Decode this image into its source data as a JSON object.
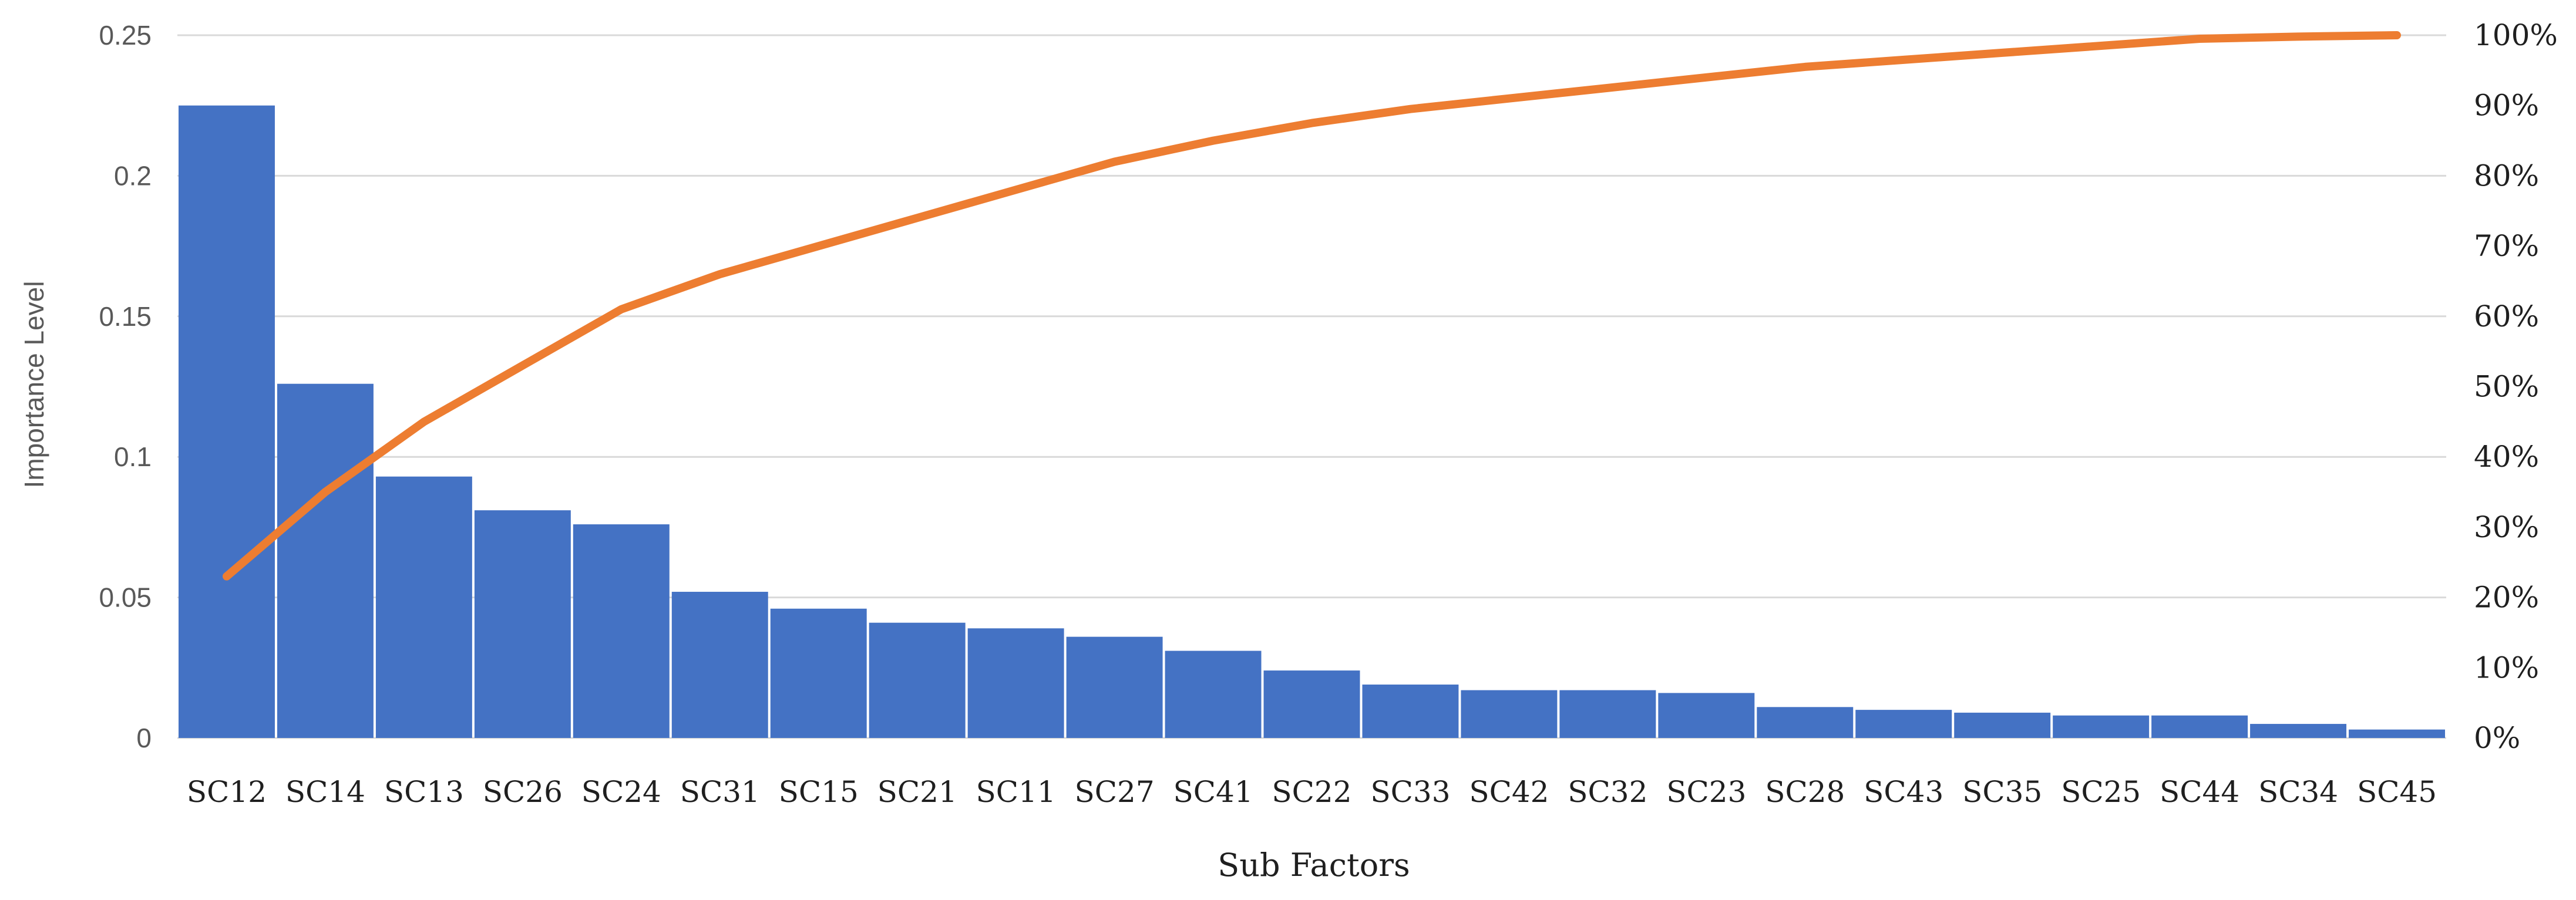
{
  "chart_data": {
    "type": "bar",
    "xlabel": "Sub Factors",
    "ylabel": "Importance Level",
    "categories": [
      "SC12",
      "SC14",
      "SC13",
      "SC26",
      "SC24",
      "SC31",
      "SC15",
      "SC21",
      "SC11",
      "SC27",
      "SC41",
      "SC22",
      "SC33",
      "SC42",
      "SC32",
      "SC23",
      "SC28",
      "SC43",
      "SC35",
      "SC25",
      "SC44",
      "SC34",
      "SC45"
    ],
    "series": [
      {
        "type": "bar",
        "axis": "left",
        "values": [
          0.225,
          0.126,
          0.093,
          0.081,
          0.076,
          0.052,
          0.046,
          0.041,
          0.039,
          0.036,
          0.031,
          0.024,
          0.019,
          0.017,
          0.017,
          0.016,
          0.011,
          0.01,
          0.009,
          0.008,
          0.008,
          0.005,
          0.003
        ]
      },
      {
        "type": "line",
        "axis": "right",
        "values": [
          23,
          35,
          45,
          53,
          61,
          66,
          70,
          74,
          78,
          82,
          85,
          87.5,
          89.5,
          91,
          92.5,
          94,
          95.5,
          96.5,
          97.5,
          98.5,
          99.5,
          99.8,
          100
        ]
      }
    ],
    "y_left": {
      "ylim": [
        0,
        0.25
      ],
      "ticks": [
        "0",
        "0.05",
        "0.1",
        "0.15",
        "0.2",
        "0.25"
      ]
    },
    "y_right": {
      "ylim": [
        0,
        100
      ],
      "ticks": [
        "0%",
        "10%",
        "20%",
        "30%",
        "40%",
        "50%",
        "60%",
        "70%",
        "80%",
        "90%",
        "100%"
      ]
    },
    "grid": true,
    "legend": "none",
    "colors": {
      "bar": "#4472c4",
      "line": "#ed7d31",
      "grid": "#d9d9d9"
    }
  }
}
